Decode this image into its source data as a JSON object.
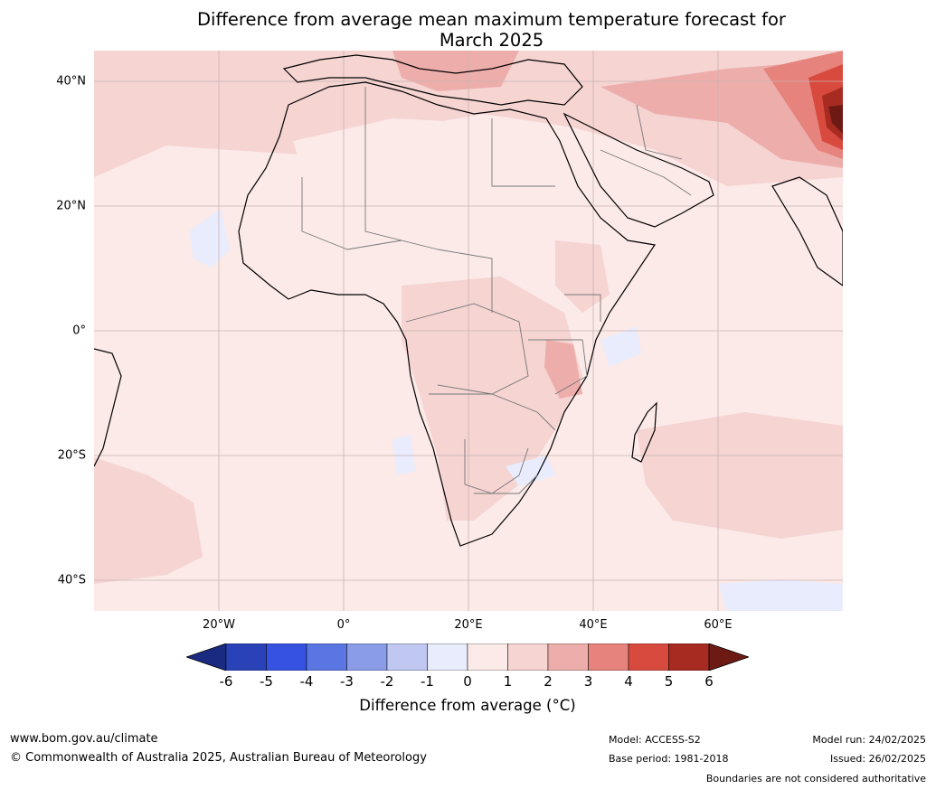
{
  "title": {
    "line1": "Difference from average mean maximum temperature forecast for",
    "line2": "March 2025"
  },
  "map": {
    "background_color": "#fbeae8",
    "lat_labels": [
      "40°N",
      "20°N",
      "0°",
      "20°S",
      "40°S"
    ],
    "lon_labels": [
      "20°W",
      "0°",
      "20°E",
      "40°E",
      "60°E"
    ]
  },
  "colorbar": {
    "levels": [
      "-6",
      "-5",
      "-4",
      "-3",
      "-2",
      "-1",
      "0",
      "1",
      "2",
      "3",
      "4",
      "5",
      "6"
    ],
    "colors": [
      "#1a2a80",
      "#2a42b8",
      "#3552e0",
      "#5a76e2",
      "#8a9ce8",
      "#c0c8f2",
      "#e8ecfc",
      "#fbeae8",
      "#f5d4d2",
      "#edaeab",
      "#e6837d",
      "#d94a3e",
      "#a82b22",
      "#6e1a14"
    ],
    "label": "Difference from average (°C)"
  },
  "footer": {
    "url": "www.bom.gov.au/climate",
    "copyright": "© Commonwealth of Australia 2025, Australian Bureau of Meteorology",
    "model": "Model: ACCESS-S2",
    "base_period": "Base period: 1981-2018",
    "model_run": "Model run: 24/02/2025",
    "issued": "Issued: 26/02/2025",
    "disclaimer": "Boundaries are not considered authoritative"
  }
}
